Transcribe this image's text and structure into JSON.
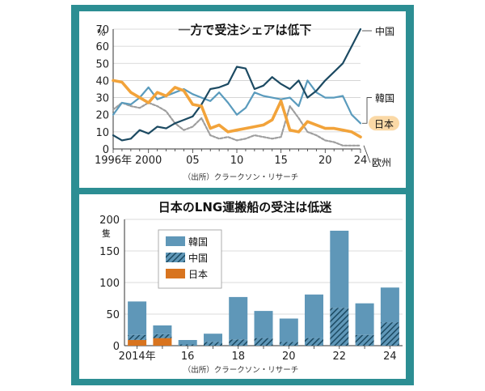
{
  "colors": {
    "frame": "#2c8e93",
    "china": "#1c4a62",
    "korea": "#5a9bbd",
    "japan": "#f2a33a",
    "europe": "#9e9e9e",
    "bar_korea": "#5f97b8",
    "bar_china_hatch": "#1c4a62",
    "bar_japan": "#d8741f",
    "japan_label_bg": "#fbd9a6"
  },
  "chart_data": [
    {
      "type": "line",
      "title": "一方で受注シェアは低下",
      "unit_label": "%",
      "source": "（出所）クラークソン・リサーチ",
      "x": [
        1996,
        1997,
        1998,
        1999,
        2000,
        2001,
        2002,
        2003,
        2004,
        2005,
        2006,
        2007,
        2008,
        2009,
        2010,
        2011,
        2012,
        2013,
        2014,
        2015,
        2016,
        2017,
        2018,
        2019,
        2020,
        2021,
        2022,
        2023,
        2024
      ],
      "xlim": [
        1996,
        2024
      ],
      "ylim": [
        0,
        70
      ],
      "yticks": [
        "0",
        "10",
        "20",
        "30",
        "40",
        "50",
        "60",
        "70"
      ],
      "xtick_labels": [
        {
          "value": 1996,
          "label": "1996年"
        },
        {
          "value": 2000,
          "label": "2000"
        },
        {
          "value": 2005,
          "label": "05"
        },
        {
          "value": 2010,
          "label": "10"
        },
        {
          "value": 2015,
          "label": "15"
        },
        {
          "value": 2020,
          "label": "20"
        },
        {
          "value": 2024,
          "label": "24"
        }
      ],
      "series": [
        {
          "name": "中国",
          "key": "china",
          "values": [
            8,
            5,
            6,
            11,
            9,
            13,
            12,
            15,
            17,
            19,
            26,
            35,
            36,
            38,
            48,
            47,
            35,
            37,
            42,
            38,
            35,
            40,
            30,
            34,
            40,
            45,
            50,
            60,
            70
          ]
        },
        {
          "name": "韓国",
          "key": "korea",
          "values": [
            20,
            27,
            26,
            30,
            36,
            29,
            31,
            33,
            35,
            32,
            30,
            28,
            33,
            27,
            20,
            24,
            33,
            31,
            30,
            29,
            30,
            25,
            40,
            33,
            30,
            30,
            31,
            20,
            15
          ]
        },
        {
          "name": "日本",
          "key": "japan",
          "values": [
            40,
            39,
            33,
            30,
            27,
            33,
            31,
            36,
            34,
            26,
            25,
            12,
            14,
            10,
            11,
            12,
            13,
            14,
            17,
            28,
            11,
            10,
            16,
            14,
            12,
            12,
            11,
            10,
            7
          ]
        },
        {
          "name": "欧州",
          "key": "europe",
          "values": [
            23,
            27,
            25,
            24,
            27,
            25,
            22,
            15,
            11,
            13,
            18,
            8,
            6,
            7,
            5,
            6,
            8,
            7,
            6,
            7,
            25,
            18,
            10,
            8,
            5,
            4,
            2,
            2,
            2
          ]
        }
      ]
    },
    {
      "type": "bar",
      "stacked": true,
      "title": "日本のLNG運搬船の受注は低迷",
      "unit_label": "隻",
      "source": "（出所）クラークソン・リサーチ",
      "categories": [
        "2014年",
        "15",
        "16",
        "17",
        "18",
        "19",
        "20",
        "21",
        "22",
        "23",
        "24"
      ],
      "xtick_labels": [
        {
          "index": 0,
          "label": "2014年"
        },
        {
          "index": 2,
          "label": "16"
        },
        {
          "index": 4,
          "label": "18"
        },
        {
          "index": 6,
          "label": "20"
        },
        {
          "index": 8,
          "label": "22"
        },
        {
          "index": 10,
          "label": "24"
        }
      ],
      "ylim": [
        0,
        200
      ],
      "yticks": [
        "0",
        "50",
        "100",
        "150",
        "200"
      ],
      "legend_position": "top-left",
      "series": [
        {
          "name": "韓国",
          "key": "korea",
          "values": [
            53,
            14,
            7,
            13,
            67,
            43,
            37,
            69,
            122,
            50,
            55
          ]
        },
        {
          "name": "中国",
          "key": "china",
          "values": [
            8,
            6,
            2,
            6,
            10,
            12,
            6,
            12,
            60,
            17,
            37
          ]
        },
        {
          "name": "日本",
          "key": "japan",
          "values": [
            9,
            12,
            0,
            0,
            0,
            0,
            0,
            0,
            0,
            0,
            0
          ]
        }
      ]
    }
  ]
}
